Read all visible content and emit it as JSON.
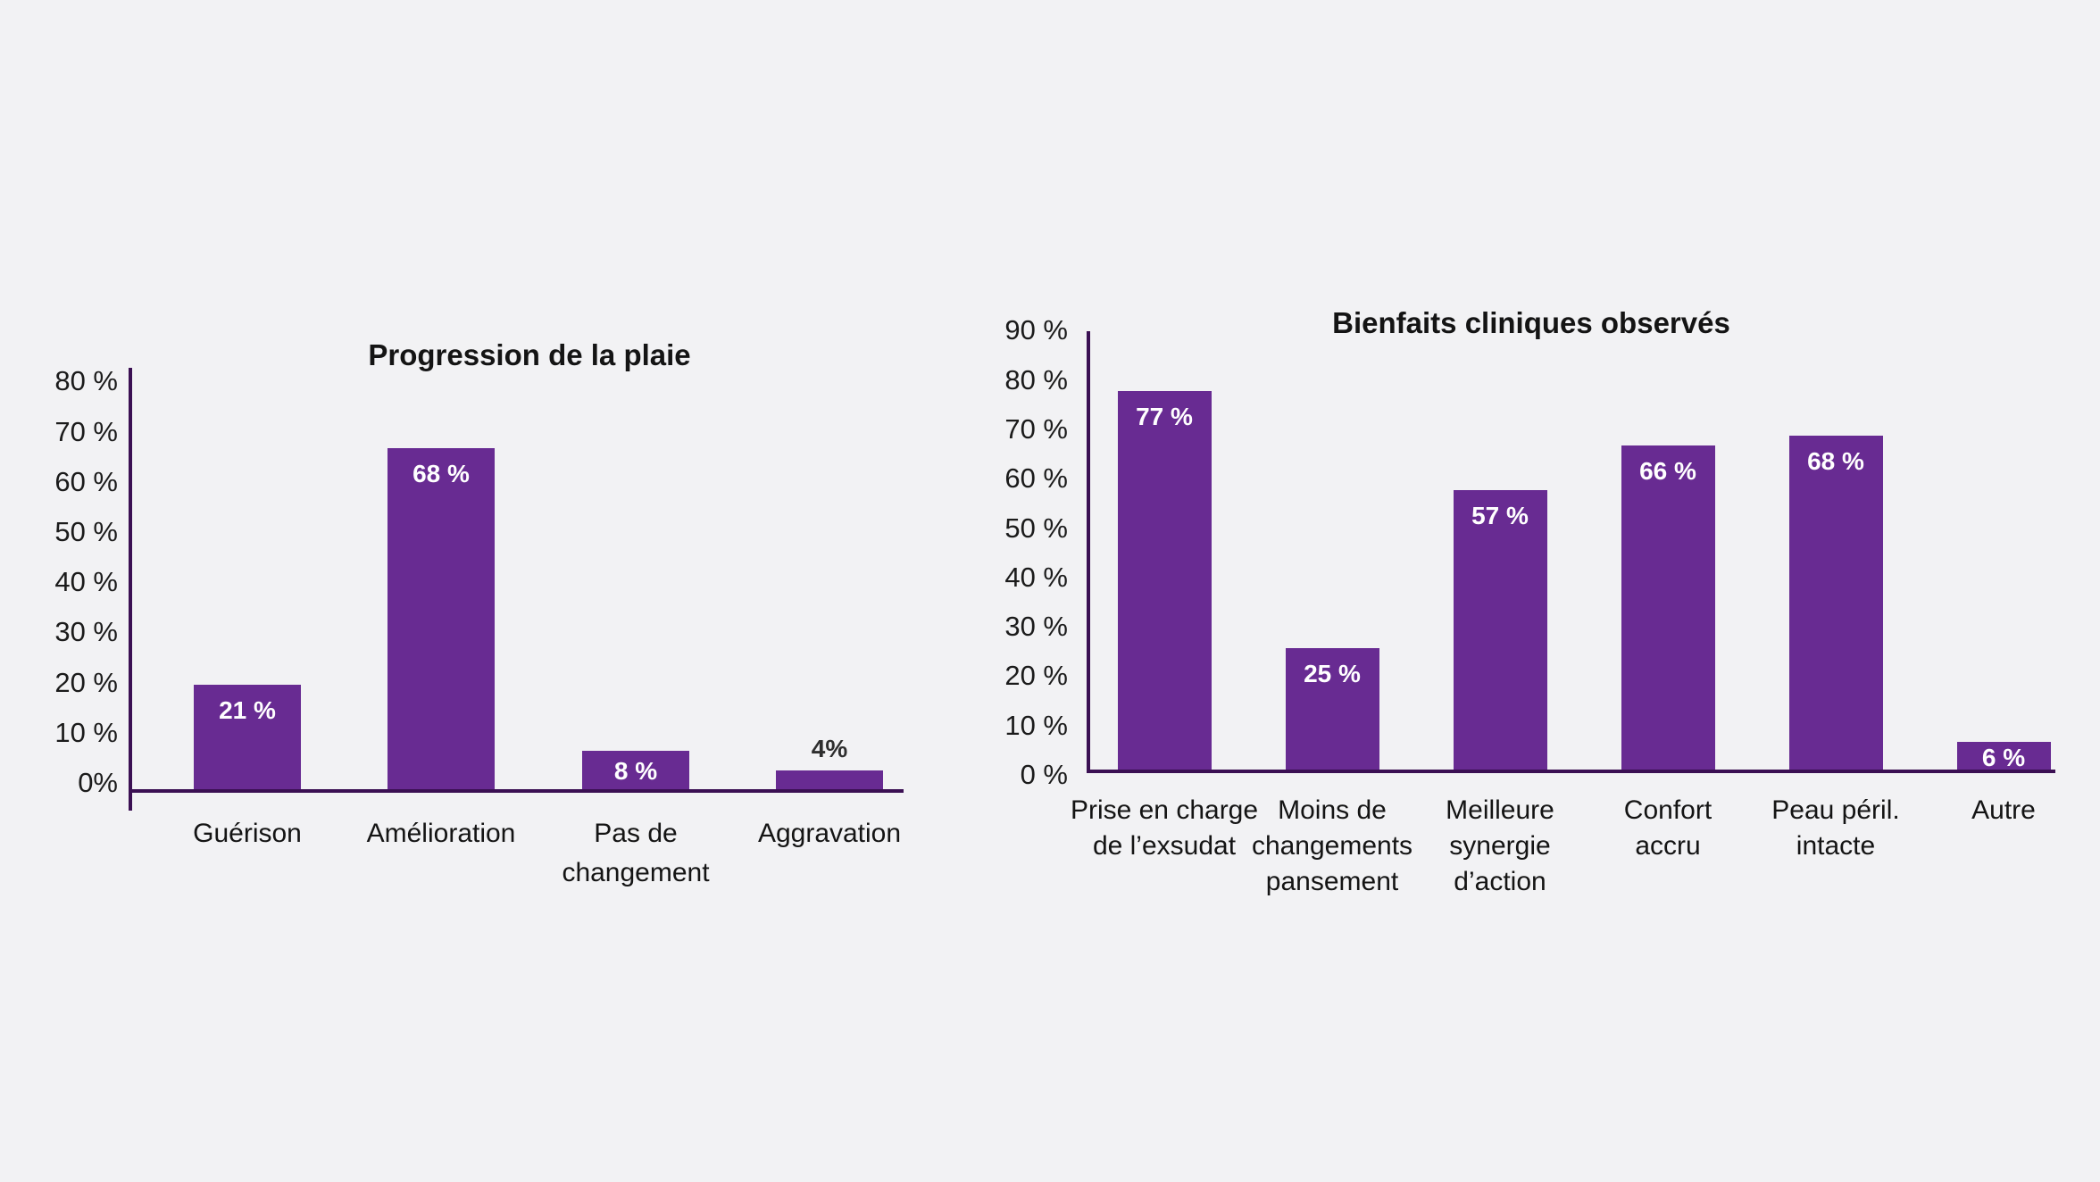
{
  "page": {
    "background_color": "#f2f2f4"
  },
  "colors": {
    "bar_fill": "#682b92",
    "axis_line": "#3b1053",
    "title_text": "#141414",
    "tick_text": "#1b1b1b",
    "category_text": "#141414",
    "value_label_inside": "#ffffff",
    "value_label_above": "#2e2e2e"
  },
  "chart_data": [
    {
      "type": "bar",
      "title": "Progression de la plaie",
      "xlabel": "",
      "ylabel": "",
      "ylim": [
        0,
        80
      ],
      "ytick_step": 10,
      "grid": false,
      "legend": "none",
      "ytick_values": [
        80,
        70,
        60,
        50,
        40,
        30,
        20,
        10,
        0
      ],
      "ytick_labels": [
        "80 %",
        "70 %",
        "60 %",
        "50 %",
        "40 %",
        "30 %",
        "20 %",
        "10 %",
        "0%"
      ],
      "categories": [
        "Guérison",
        "Amélioration",
        "Pas de changement",
        "Aggravation"
      ],
      "category_lines": [
        [
          "Guérison"
        ],
        [
          "Amélioration"
        ],
        [
          "Pas de",
          "changement"
        ],
        [
          "Aggravation"
        ]
      ],
      "values": [
        21,
        68,
        8,
        4
      ],
      "value_labels": [
        "21 %",
        "68 %",
        "8 %",
        "4%"
      ],
      "value_label_positions": [
        "inside",
        "inside",
        "inside",
        "above"
      ]
    },
    {
      "type": "bar",
      "title": "Bienfaits cliniques observés",
      "xlabel": "",
      "ylabel": "",
      "ylim": [
        0,
        90
      ],
      "ytick_step": 10,
      "grid": false,
      "legend": "none",
      "ytick_values": [
        90,
        80,
        70,
        60,
        50,
        40,
        30,
        20,
        10,
        0
      ],
      "ytick_labels": [
        "90 %",
        "80 %",
        "70 %",
        "60 %",
        "50 %",
        "40 %",
        "30 %",
        "20 %",
        "10 %",
        "0 %"
      ],
      "categories": [
        "Prise en charge de l’exsudat",
        "Moins de changements pansement",
        "Meilleure synergie d’action",
        "Confort accru",
        "Peau péril. intacte",
        "Autre"
      ],
      "category_lines": [
        [
          "Prise en charge",
          "de l’exsudat"
        ],
        [
          "Moins de",
          "changements",
          "pansement"
        ],
        [
          "Meilleure",
          "synergie",
          "d’action"
        ],
        [
          "Confort",
          "accru"
        ],
        [
          "Peau péril.",
          "intacte"
        ],
        [
          "Autre"
        ]
      ],
      "values": [
        77,
        25,
        57,
        66,
        68,
        6
      ],
      "value_labels": [
        "77 %",
        "25 %",
        "57 %",
        "66 %",
        "68 %",
        "6 %"
      ],
      "value_label_positions": [
        "inside",
        "inside",
        "inside",
        "inside",
        "inside",
        "inside"
      ]
    }
  ]
}
